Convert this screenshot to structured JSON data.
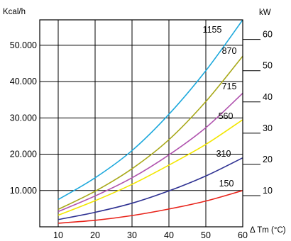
{
  "chart_data": {
    "type": "line",
    "left_axis_label": "Kcal/h",
    "right_axis_label": "kW",
    "x_axis_label": "Δ Tm (°C)",
    "xlim": [
      5,
      60
    ],
    "ylim_left": [
      0,
      57000
    ],
    "x_ticks": [
      10,
      20,
      30,
      40,
      50,
      60
    ],
    "x_tick_labels": [
      "10",
      "20",
      "30",
      "40",
      "50",
      "60"
    ],
    "left_ticks": [
      10000,
      20000,
      30000,
      40000,
      50000
    ],
    "left_tick_labels": [
      "10.000",
      "20.000",
      "30.000",
      "40.000",
      "50.000"
    ],
    "right_ticks_kcal": [
      8600,
      17200,
      25800,
      34400,
      43000,
      51600
    ],
    "right_tick_labels": [
      "10",
      "20",
      "30",
      "40",
      "50",
      "60"
    ],
    "grid": true,
    "series": [
      {
        "name": "1155",
        "color": "#1ca8dc",
        "x": [
          10,
          20,
          30,
          40,
          50,
          60
        ],
        "y": [
          7500,
          13500,
          21000,
          31000,
          43000,
          57000
        ]
      },
      {
        "name": "870",
        "color": "#a8a818",
        "x": [
          10,
          20,
          30,
          40,
          50,
          60
        ],
        "y": [
          4800,
          9800,
          16000,
          24000,
          34500,
          47000
        ]
      },
      {
        "name": "715",
        "color": "#b053ae",
        "x": [
          10,
          20,
          30,
          40,
          50,
          60
        ],
        "y": [
          4200,
          8500,
          13500,
          19800,
          27300,
          36800
        ]
      },
      {
        "name": "560",
        "color": "#f2e600",
        "x": [
          10,
          20,
          30,
          40,
          50,
          60
        ],
        "y": [
          3200,
          7200,
          11700,
          17000,
          22700,
          29500
        ]
      },
      {
        "name": "310",
        "color": "#2e3192",
        "x": [
          10,
          20,
          30,
          40,
          50,
          60
        ],
        "y": [
          2000,
          4000,
          6500,
          9900,
          14000,
          19000
        ]
      },
      {
        "name": "150",
        "color": "#e8231a",
        "x": [
          10,
          20,
          30,
          40,
          50,
          60
        ],
        "y": [
          1000,
          1800,
          3100,
          4900,
          7100,
          10000
        ]
      }
    ]
  }
}
